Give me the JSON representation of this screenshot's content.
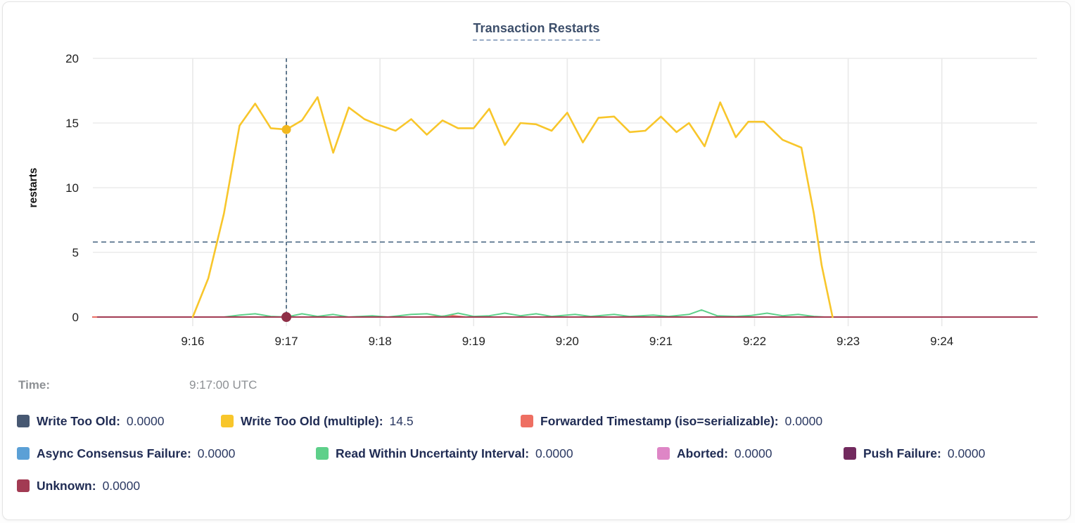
{
  "title": "Transaction Restarts",
  "tooltip": {
    "label": "Time:",
    "value": "9:17:00 UTC"
  },
  "legend": {
    "rows": [
      [
        {
          "label": "Write Too Old:",
          "value": "0.0000",
          "color": "#475872"
        },
        {
          "label": "Write Too Old (multiple):",
          "value": "14.5",
          "color": "#f8c62b"
        },
        {
          "label": "Forwarded Timestamp (iso=serializable):",
          "value": "0.0000",
          "color": "#ee6f62"
        }
      ],
      [
        {
          "label": "Async Consensus Failure:",
          "value": "0.0000",
          "color": "#5ba0d6"
        },
        {
          "label": "Read Within Uncertainty Interval:",
          "value": "0.0000",
          "color": "#5ed08a"
        },
        {
          "label": "Aborted:",
          "value": "0.0000",
          "color": "#de86c6"
        },
        {
          "label": "Push Failure:",
          "value": "0.0000",
          "color": "#722a5e"
        }
      ],
      [
        {
          "label": "Unknown:",
          "value": "0.0000",
          "color": "#a23b53"
        }
      ]
    ]
  },
  "chart_data": {
    "type": "line",
    "title": "Transaction Restarts",
    "xlabel": "",
    "ylabel": "restarts",
    "ylim": [
      0,
      20
    ],
    "y_ticks": [
      0,
      5,
      10,
      15,
      20
    ],
    "x_tick_labels": [
      "9:16",
      "9:17",
      "9:18",
      "9:19",
      "9:20",
      "9:21",
      "9:22",
      "9:23",
      "9:24"
    ],
    "x_tick_seconds": [
      0,
      60,
      120,
      180,
      240,
      300,
      360,
      420,
      480
    ],
    "x_domain_seconds": [
      -64,
      541
    ],
    "grid": true,
    "legend_position": "bottom",
    "average_reference_line": 5.8,
    "hover": {
      "t": 60,
      "time": "9:17:00 UTC",
      "highlight_series": "Write Too Old (multiple)",
      "highlight_value": 14.5
    },
    "series": [
      {
        "name": "Write Too Old",
        "color": "#475872",
        "value_at_hover": 0.0,
        "points": [
          [
            -64,
            0
          ],
          [
            541,
            0
          ]
        ]
      },
      {
        "name": "Async Consensus Failure",
        "color": "#5ba0d6",
        "value_at_hover": 0.0,
        "points": [
          [
            -64,
            0
          ],
          [
            541,
            0
          ]
        ]
      },
      {
        "name": "Aborted",
        "color": "#de86c6",
        "value_at_hover": 0.0,
        "points": [
          [
            -64,
            0
          ],
          [
            541,
            0
          ]
        ]
      },
      {
        "name": "Push Failure",
        "color": "#722a5e",
        "value_at_hover": 0.0,
        "points": [
          [
            -64,
            0
          ],
          [
            541,
            0
          ]
        ]
      },
      {
        "name": "Forwarded Timestamp (iso=serializable)",
        "color": "#ee6f62",
        "value_at_hover": 0.0,
        "points": [
          [
            -64,
            0
          ],
          [
            148,
            0
          ],
          [
            158,
            0.05
          ],
          [
            165,
            0.12
          ],
          [
            175,
            0
          ],
          [
            541,
            0
          ]
        ]
      },
      {
        "name": "Read Within Uncertainty Interval",
        "color": "#5ed08a",
        "value_at_hover": 0.0,
        "points": [
          [
            20,
            0
          ],
          [
            30,
            0.15
          ],
          [
            40,
            0.25
          ],
          [
            50,
            0.05
          ],
          [
            60,
            0
          ],
          [
            70,
            0.25
          ],
          [
            80,
            0.05
          ],
          [
            90,
            0.2
          ],
          [
            100,
            0
          ],
          [
            115,
            0.1
          ],
          [
            125,
            0
          ],
          [
            140,
            0.2
          ],
          [
            150,
            0.25
          ],
          [
            160,
            0.05
          ],
          [
            170,
            0.3
          ],
          [
            180,
            0.05
          ],
          [
            190,
            0.1
          ],
          [
            200,
            0.3
          ],
          [
            210,
            0.1
          ],
          [
            220,
            0.25
          ],
          [
            230,
            0.05
          ],
          [
            245,
            0.2
          ],
          [
            255,
            0.05
          ],
          [
            270,
            0.2
          ],
          [
            280,
            0.05
          ],
          [
            295,
            0.15
          ],
          [
            305,
            0.05
          ],
          [
            318,
            0.2
          ],
          [
            326,
            0.55
          ],
          [
            336,
            0.1
          ],
          [
            348,
            0.05
          ],
          [
            358,
            0.12
          ],
          [
            368,
            0.3
          ],
          [
            378,
            0.1
          ],
          [
            388,
            0.2
          ],
          [
            398,
            0.05
          ],
          [
            405,
            0
          ]
        ]
      },
      {
        "name": "Unknown",
        "color": "#a23b53",
        "value_at_hover": 0.0,
        "points": [
          [
            -61,
            0
          ],
          [
            541,
            0
          ]
        ]
      },
      {
        "name": "Write Too Old (multiple)",
        "color": "#f8c62b",
        "value_at_hover": 14.5,
        "points": [
          [
            0,
            0
          ],
          [
            10,
            3.0
          ],
          [
            20,
            8.0
          ],
          [
            30,
            14.8
          ],
          [
            40,
            16.5
          ],
          [
            50,
            14.6
          ],
          [
            60,
            14.5
          ],
          [
            70,
            15.2
          ],
          [
            80,
            17.0
          ],
          [
            90,
            12.7
          ],
          [
            100,
            16.2
          ],
          [
            110,
            15.3
          ],
          [
            118,
            14.9
          ],
          [
            130,
            14.4
          ],
          [
            140,
            15.3
          ],
          [
            150,
            14.1
          ],
          [
            160,
            15.2
          ],
          [
            170,
            14.6
          ],
          [
            180,
            14.6
          ],
          [
            190,
            16.1
          ],
          [
            200,
            13.3
          ],
          [
            210,
            15.0
          ],
          [
            220,
            14.9
          ],
          [
            230,
            14.4
          ],
          [
            240,
            15.8
          ],
          [
            250,
            13.5
          ],
          [
            260,
            15.4
          ],
          [
            270,
            15.5
          ],
          [
            280,
            14.3
          ],
          [
            290,
            14.4
          ],
          [
            300,
            15.5
          ],
          [
            310,
            14.3
          ],
          [
            318,
            15.0
          ],
          [
            328,
            13.2
          ],
          [
            338,
            16.6
          ],
          [
            348,
            13.9
          ],
          [
            356,
            15.1
          ],
          [
            366,
            15.1
          ],
          [
            378,
            13.7
          ],
          [
            390,
            13.1
          ],
          [
            398,
            8.0
          ],
          [
            403,
            4.0
          ],
          [
            410,
            0
          ]
        ]
      }
    ]
  },
  "colors": {
    "grid": "#ececec",
    "axis_text": "#1f1f1f",
    "reference_dash": "#4d6a85",
    "hover_dash": "#3f5c77",
    "hover_dot_top": "#f2b81f",
    "hover_dot_bottom": "#8f2f47"
  }
}
